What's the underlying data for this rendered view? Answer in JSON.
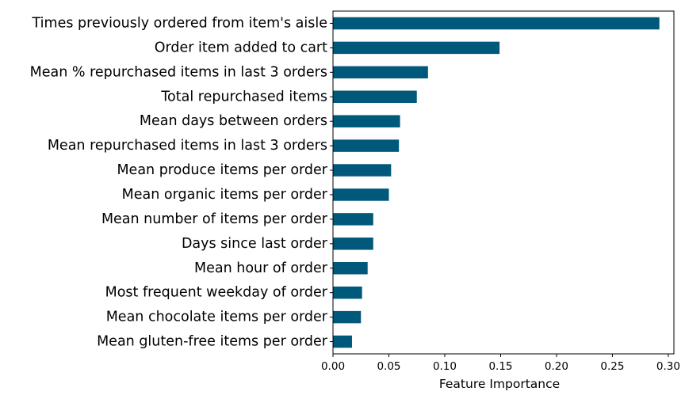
{
  "chart_data": {
    "type": "bar",
    "orientation": "horizontal",
    "categories": [
      "Times previously ordered from item's aisle",
      "Order item added to cart",
      "Mean % repurchased items in last 3 orders",
      "Total repurchased items",
      "Mean days between orders",
      "Mean repurchased items in last 3 orders",
      "Mean produce items per order",
      "Mean organic items per order",
      "Mean number of items per order",
      "Days since last order",
      "Mean hour of order",
      "Most frequent weekday of order",
      "Mean chocolate items per order",
      "Mean gluten-free items per order"
    ],
    "values": [
      0.292,
      0.149,
      0.085,
      0.075,
      0.06,
      0.059,
      0.052,
      0.05,
      0.036,
      0.036,
      0.031,
      0.026,
      0.025,
      0.017
    ],
    "xlabel": "Feature Importance",
    "ylabel": "",
    "xlim": [
      0.0,
      0.305
    ],
    "xticks": [
      "0.00",
      "0.05",
      "0.10",
      "0.15",
      "0.20",
      "0.25",
      "0.30"
    ],
    "grid": false,
    "bar_color": "#00587a"
  }
}
